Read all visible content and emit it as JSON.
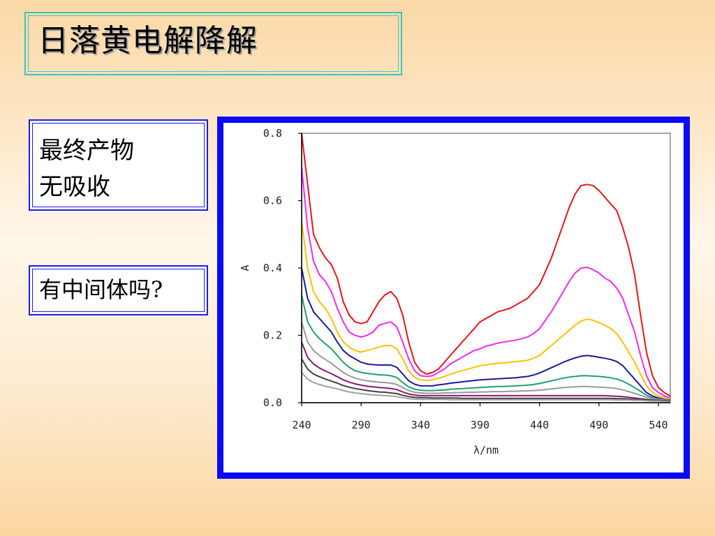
{
  "slide": {
    "title": "日落黄电解降解",
    "note_final": [
      "最终产物",
      "无吸收"
    ],
    "note_question": "有中间体吗?"
  },
  "chart_data": {
    "type": "line",
    "xlabel": "λ/nm",
    "ylabel": "A",
    "xlim": [
      240,
      550
    ],
    "ylim": [
      0,
      0.8
    ],
    "x_ticks": [
      "240",
      "290",
      "340",
      "390",
      "440",
      "490",
      "540"
    ],
    "y_ticks": [
      "0.0",
      "0.2",
      "0.4",
      "0.6",
      "0.8"
    ],
    "grid": false,
    "x": [
      240,
      245,
      250,
      255,
      260,
      265,
      270,
      275,
      280,
      285,
      290,
      295,
      300,
      305,
      310,
      315,
      320,
      325,
      330,
      335,
      340,
      345,
      350,
      355,
      360,
      365,
      370,
      375,
      380,
      385,
      390,
      395,
      400,
      405,
      410,
      415,
      420,
      425,
      430,
      435,
      440,
      445,
      450,
      455,
      460,
      465,
      470,
      475,
      480,
      485,
      490,
      495,
      500,
      505,
      510,
      515,
      520,
      525,
      530,
      535,
      540,
      545,
      550
    ],
    "series": [
      {
        "color": "#e8141b",
        "values": [
          0.8,
          0.65,
          0.5,
          0.46,
          0.43,
          0.41,
          0.37,
          0.3,
          0.26,
          0.24,
          0.235,
          0.24,
          0.27,
          0.3,
          0.32,
          0.33,
          0.31,
          0.26,
          0.18,
          0.12,
          0.095,
          0.085,
          0.09,
          0.1,
          0.12,
          0.14,
          0.16,
          0.18,
          0.2,
          0.22,
          0.24,
          0.25,
          0.26,
          0.27,
          0.275,
          0.28,
          0.29,
          0.3,
          0.31,
          0.33,
          0.35,
          0.39,
          0.43,
          0.48,
          0.53,
          0.58,
          0.62,
          0.645,
          0.648,
          0.645,
          0.63,
          0.61,
          0.59,
          0.57,
          0.52,
          0.46,
          0.38,
          0.26,
          0.15,
          0.08,
          0.045,
          0.03,
          0.02
        ]
      },
      {
        "color": "#f428f2",
        "values": [
          0.7,
          0.52,
          0.42,
          0.38,
          0.36,
          0.33,
          0.28,
          0.24,
          0.21,
          0.2,
          0.195,
          0.2,
          0.21,
          0.23,
          0.235,
          0.24,
          0.225,
          0.18,
          0.13,
          0.095,
          0.08,
          0.078,
          0.08,
          0.09,
          0.1,
          0.115,
          0.125,
          0.135,
          0.145,
          0.155,
          0.16,
          0.168,
          0.172,
          0.177,
          0.18,
          0.183,
          0.186,
          0.19,
          0.195,
          0.205,
          0.22,
          0.245,
          0.27,
          0.3,
          0.33,
          0.36,
          0.385,
          0.4,
          0.402,
          0.395,
          0.385,
          0.37,
          0.36,
          0.34,
          0.31,
          0.26,
          0.21,
          0.14,
          0.08,
          0.045,
          0.03,
          0.02,
          0.015
        ]
      },
      {
        "color": "#ffc000",
        "values": [
          0.54,
          0.4,
          0.33,
          0.3,
          0.28,
          0.25,
          0.21,
          0.18,
          0.165,
          0.155,
          0.15,
          0.155,
          0.16,
          0.165,
          0.17,
          0.17,
          0.16,
          0.13,
          0.095,
          0.075,
          0.068,
          0.066,
          0.068,
          0.072,
          0.078,
          0.085,
          0.09,
          0.095,
          0.1,
          0.105,
          0.11,
          0.112,
          0.115,
          0.117,
          0.118,
          0.12,
          0.122,
          0.124,
          0.126,
          0.132,
          0.14,
          0.155,
          0.17,
          0.185,
          0.2,
          0.215,
          0.23,
          0.243,
          0.248,
          0.245,
          0.238,
          0.23,
          0.22,
          0.205,
          0.18,
          0.15,
          0.12,
          0.085,
          0.05,
          0.03,
          0.02,
          0.015,
          0.01
        ]
      },
      {
        "color": "#1a1a9a",
        "values": [
          0.4,
          0.31,
          0.27,
          0.25,
          0.23,
          0.21,
          0.18,
          0.155,
          0.14,
          0.13,
          0.12,
          0.115,
          0.113,
          0.112,
          0.112,
          0.112,
          0.105,
          0.085,
          0.065,
          0.055,
          0.05,
          0.05,
          0.05,
          0.053,
          0.055,
          0.058,
          0.06,
          0.062,
          0.064,
          0.066,
          0.068,
          0.069,
          0.07,
          0.071,
          0.072,
          0.073,
          0.074,
          0.076,
          0.078,
          0.082,
          0.088,
          0.096,
          0.104,
          0.112,
          0.12,
          0.127,
          0.133,
          0.138,
          0.14,
          0.138,
          0.135,
          0.132,
          0.128,
          0.122,
          0.11,
          0.09,
          0.07,
          0.05,
          0.03,
          0.02,
          0.014,
          0.01,
          0.008
        ]
      },
      {
        "color": "#20a070",
        "values": [
          0.32,
          0.24,
          0.21,
          0.19,
          0.175,
          0.16,
          0.14,
          0.12,
          0.105,
          0.095,
          0.09,
          0.087,
          0.085,
          0.083,
          0.082,
          0.08,
          0.075,
          0.06,
          0.047,
          0.04,
          0.037,
          0.036,
          0.036,
          0.037,
          0.038,
          0.04,
          0.041,
          0.042,
          0.043,
          0.044,
          0.045,
          0.046,
          0.047,
          0.048,
          0.048,
          0.049,
          0.05,
          0.051,
          0.052,
          0.054,
          0.057,
          0.061,
          0.065,
          0.069,
          0.073,
          0.076,
          0.078,
          0.08,
          0.08,
          0.079,
          0.078,
          0.076,
          0.074,
          0.07,
          0.064,
          0.055,
          0.045,
          0.034,
          0.022,
          0.015,
          0.011,
          0.009,
          0.007
        ]
      },
      {
        "color": "#999999",
        "values": [
          0.24,
          0.18,
          0.155,
          0.14,
          0.128,
          0.117,
          0.103,
          0.09,
          0.08,
          0.073,
          0.068,
          0.065,
          0.063,
          0.061,
          0.06,
          0.058,
          0.054,
          0.045,
          0.036,
          0.031,
          0.029,
          0.028,
          0.028,
          0.028,
          0.029,
          0.029,
          0.03,
          0.03,
          0.031,
          0.031,
          0.032,
          0.032,
          0.033,
          0.033,
          0.033,
          0.034,
          0.034,
          0.035,
          0.035,
          0.036,
          0.037,
          0.039,
          0.041,
          0.043,
          0.045,
          0.046,
          0.047,
          0.048,
          0.048,
          0.047,
          0.046,
          0.045,
          0.044,
          0.042,
          0.038,
          0.033,
          0.028,
          0.022,
          0.016,
          0.012,
          0.009,
          0.008,
          0.006
        ]
      },
      {
        "color": "#8a1a7a",
        "values": [
          0.18,
          0.135,
          0.115,
          0.103,
          0.094,
          0.086,
          0.077,
          0.068,
          0.061,
          0.056,
          0.052,
          0.049,
          0.047,
          0.045,
          0.044,
          0.042,
          0.039,
          0.032,
          0.026,
          0.023,
          0.021,
          0.021,
          0.021,
          0.021,
          0.021,
          0.021,
          0.021,
          0.021,
          0.021,
          0.021,
          0.021,
          0.021,
          0.021,
          0.021,
          0.021,
          0.021,
          0.021,
          0.021,
          0.021,
          0.021,
          0.021,
          0.021,
          0.021,
          0.021,
          0.021,
          0.021,
          0.021,
          0.021,
          0.021,
          0.021,
          0.021,
          0.021,
          0.02,
          0.019,
          0.018,
          0.016,
          0.014,
          0.012,
          0.01,
          0.008,
          0.007,
          0.006,
          0.005
        ]
      },
      {
        "color": "#404040",
        "values": [
          0.13,
          0.1,
          0.085,
          0.077,
          0.07,
          0.064,
          0.058,
          0.051,
          0.046,
          0.042,
          0.039,
          0.036,
          0.034,
          0.032,
          0.031,
          0.029,
          0.027,
          0.022,
          0.018,
          0.016,
          0.015,
          0.015,
          0.014,
          0.014,
          0.014,
          0.014,
          0.014,
          0.013,
          0.013,
          0.013,
          0.013,
          0.013,
          0.013,
          0.013,
          0.013,
          0.013,
          0.013,
          0.013,
          0.013,
          0.013,
          0.013,
          0.013,
          0.013,
          0.013,
          0.013,
          0.013,
          0.013,
          0.013,
          0.013,
          0.013,
          0.013,
          0.013,
          0.013,
          0.012,
          0.012,
          0.011,
          0.01,
          0.009,
          0.008,
          0.007,
          0.006,
          0.005,
          0.004
        ]
      },
      {
        "color": "#a0a0a0",
        "values": [
          0.09,
          0.07,
          0.06,
          0.054,
          0.049,
          0.045,
          0.041,
          0.036,
          0.032,
          0.029,
          0.027,
          0.025,
          0.023,
          0.022,
          0.021,
          0.02,
          0.018,
          0.015,
          0.012,
          0.011,
          0.01,
          0.01,
          0.01,
          0.01,
          0.01,
          0.009,
          0.009,
          0.009,
          0.009,
          0.009,
          0.009,
          0.009,
          0.009,
          0.009,
          0.009,
          0.009,
          0.009,
          0.009,
          0.009,
          0.009,
          0.009,
          0.009,
          0.009,
          0.009,
          0.009,
          0.009,
          0.009,
          0.009,
          0.009,
          0.009,
          0.009,
          0.009,
          0.009,
          0.008,
          0.008,
          0.008,
          0.007,
          0.007,
          0.006,
          0.005,
          0.005,
          0.004,
          0.003
        ]
      }
    ]
  }
}
